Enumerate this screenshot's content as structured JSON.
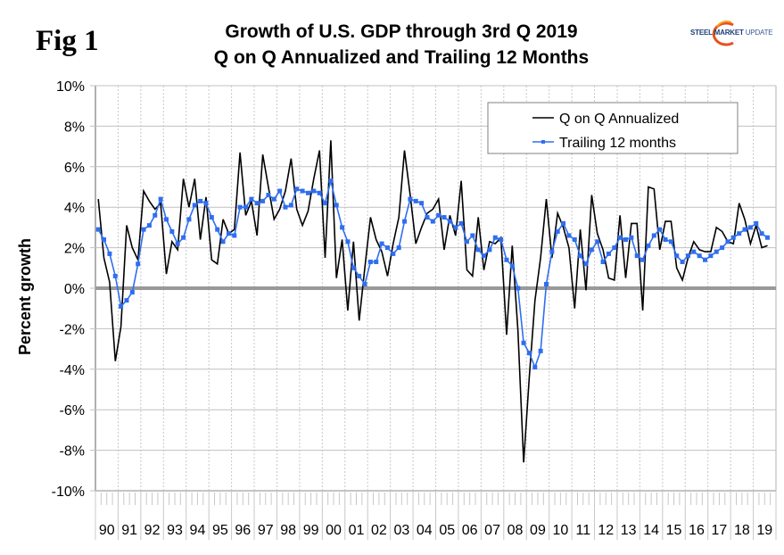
{
  "figure_label": "Fig 1",
  "logo": {
    "part1": "STEEL",
    "part2": "MARKET",
    "part3": "UPDATE",
    "accent_color": "#e8501e"
  },
  "chart_data": {
    "type": "line",
    "title": "Growth of U.S. GDP through 3rd Q 2019",
    "subtitle": "Q on Q Annualized and Trailing 12 Months",
    "xlabel": "",
    "ylabel": "Percent growth",
    "ylim": [
      -10,
      10
    ],
    "yticks": [
      -10,
      -8,
      -6,
      -4,
      -2,
      0,
      2,
      4,
      6,
      8,
      10
    ],
    "ytick_labels": [
      "-10%",
      "-8%",
      "-6%",
      "-4%",
      "-2%",
      "0%",
      "2%",
      "4%",
      "6%",
      "8%",
      "10%"
    ],
    "categories": [
      "90",
      "91",
      "92",
      "93",
      "94",
      "95",
      "96",
      "97",
      "98",
      "99",
      "00",
      "01",
      "02",
      "03",
      "04",
      "05",
      "06",
      "07",
      "08",
      "09",
      "10",
      "11",
      "12",
      "13",
      "14",
      "15",
      "16",
      "17",
      "18",
      "19"
    ],
    "x_unit": "quarter",
    "first_quarter": "1990 Q1",
    "last_quarter": "2019 Q3",
    "grid": true,
    "legend_position": "top-right",
    "colors": {
      "qoq": "#000000",
      "trailing": "#2f6ef0",
      "zero_line": "#999999",
      "grid": "#c0c0c0"
    },
    "series": [
      {
        "name": "Q on Q Annualized",
        "values": [
          4.4,
          1.5,
          0.3,
          -3.6,
          -1.9,
          3.1,
          2.0,
          1.4,
          4.8,
          4.3,
          3.9,
          4.2,
          0.7,
          2.3,
          1.9,
          5.4,
          4.0,
          5.4,
          2.4,
          4.5,
          1.4,
          1.2,
          3.4,
          2.7,
          2.9,
          6.7,
          3.6,
          4.3,
          2.6,
          6.6,
          5.0,
          3.4,
          3.9,
          4.8,
          6.4,
          3.9,
          3.1,
          3.8,
          5.4,
          6.8,
          1.5,
          7.3,
          0.5,
          2.4,
          -1.1,
          2.3,
          -1.6,
          1.0,
          3.5,
          2.4,
          1.8,
          0.6,
          2.2,
          3.5,
          6.8,
          4.6,
          2.2,
          3.0,
          3.7,
          3.9,
          4.4,
          1.9,
          3.6,
          2.6,
          5.3,
          0.9,
          0.6,
          3.5,
          0.9,
          2.3,
          2.2,
          2.5,
          -2.3,
          2.1,
          -2.1,
          -8.6,
          -4.4,
          -0.6,
          1.5,
          4.4,
          1.5,
          3.7,
          3.0,
          2.0,
          -1.0,
          2.9,
          -0.1,
          4.6,
          2.7,
          1.9,
          0.5,
          0.4,
          3.6,
          0.5,
          3.2,
          3.2,
          -1.1,
          5.0,
          4.9,
          1.9,
          3.3,
          3.3,
          1.0,
          0.4,
          1.5,
          2.3,
          1.9,
          1.8,
          1.8,
          3.0,
          2.8,
          2.3,
          2.2,
          4.2,
          3.4,
          2.2,
          3.1,
          2.0,
          2.1
        ],
        "marker": "none"
      },
      {
        "name": "Trailing 12 months",
        "values": [
          2.9,
          2.4,
          1.7,
          0.6,
          -0.9,
          -0.6,
          -0.2,
          1.2,
          2.9,
          3.1,
          3.6,
          4.4,
          3.4,
          2.8,
          2.2,
          2.5,
          3.4,
          4.1,
          4.3,
          4.2,
          3.5,
          2.9,
          2.3,
          2.7,
          2.6,
          4.0,
          4.0,
          4.4,
          4.2,
          4.3,
          4.6,
          4.4,
          4.8,
          4.0,
          4.1,
          4.9,
          4.8,
          4.7,
          4.8,
          4.7,
          4.2,
          5.3,
          4.1,
          3.0,
          2.3,
          1.0,
          0.6,
          0.2,
          1.3,
          1.3,
          2.2,
          2.0,
          1.7,
          2.0,
          3.3,
          4.4,
          4.3,
          4.2,
          3.5,
          3.3,
          3.6,
          3.5,
          3.3,
          3.0,
          3.2,
          2.3,
          2.6,
          1.9,
          1.6,
          1.9,
          2.5,
          2.4,
          1.4,
          1.1,
          0.0,
          -2.7,
          -3.2,
          -3.9,
          -3.1,
          0.2,
          1.8,
          2.8,
          3.2,
          2.6,
          2.4,
          1.6,
          1.2,
          1.9,
          2.3,
          1.3,
          1.7,
          2.0,
          2.5,
          2.4,
          2.5,
          1.6,
          1.4,
          2.1,
          2.6,
          2.9,
          2.4,
          2.3,
          1.6,
          1.3,
          1.6,
          1.8,
          1.6,
          1.4,
          1.6,
          1.8,
          2.0,
          2.3,
          2.5,
          2.7,
          2.9,
          3.0,
          3.2,
          2.7,
          2.5
        ],
        "marker": "square"
      }
    ]
  }
}
